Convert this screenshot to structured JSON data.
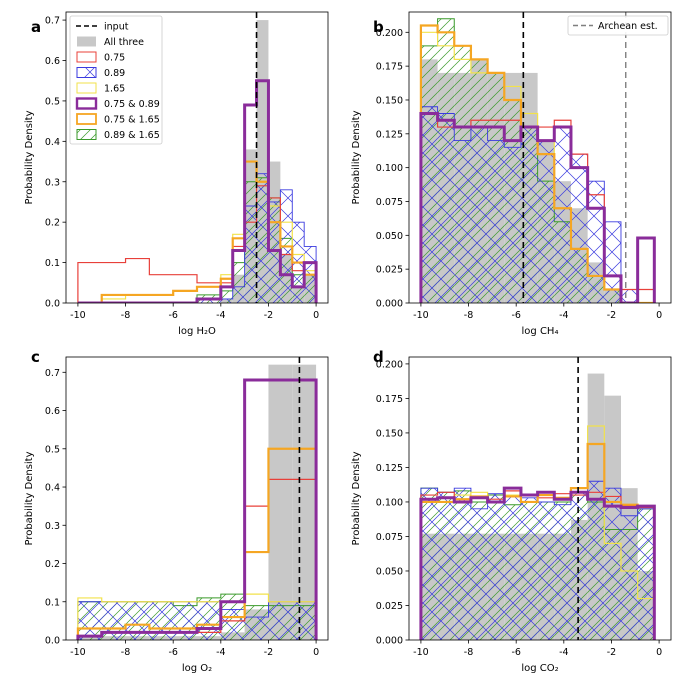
{
  "chart_data": [
    {
      "type": "histogram",
      "panel": "a",
      "xlabel": "log H₂O",
      "ylabel": "Probability Density",
      "xlim": [
        -10.5,
        0.5
      ],
      "ylim": [
        0,
        0.72
      ],
      "xticks": [
        "-10",
        "-8",
        "-6",
        "-4",
        "-2",
        "0"
      ],
      "xtick_values": [
        -10,
        -8,
        -6,
        -4,
        -2,
        0
      ],
      "yticks": [
        "0.0",
        "0.1",
        "0.2",
        "0.3",
        "0.4",
        "0.5",
        "0.6",
        "0.7"
      ],
      "ytick_values": [
        0,
        0.1,
        0.2,
        0.3,
        0.4,
        0.5,
        0.6,
        0.7
      ],
      "input": -2.5,
      "bin_edges": [
        -10,
        -9,
        -8,
        -7,
        -6,
        -5,
        -4,
        -3.5,
        -3,
        -2.5,
        -2,
        -1.5,
        -1,
        -0.5,
        0
      ],
      "series": [
        {
          "name": "All three",
          "values": [
            0,
            0,
            0,
            0,
            0,
            0,
            0.01,
            0.07,
            0.38,
            0.7,
            0.35,
            0.12,
            0.04,
            0.07
          ]
        },
        {
          "name": "0.75",
          "values": [
            0.1,
            0.1,
            0.11,
            0.07,
            0.07,
            0.05,
            0.05,
            0.14,
            0.2,
            0.29,
            0.26,
            0.12,
            0.08,
            0.1
          ]
        },
        {
          "name": "0.89",
          "values": [
            0,
            0,
            0,
            0,
            0,
            0.01,
            0.01,
            0.04,
            0.24,
            0.32,
            0.25,
            0.28,
            0.2,
            0.14
          ]
        },
        {
          "name": "1.65",
          "values": [
            0,
            0.01,
            0.02,
            0.02,
            0.03,
            0.04,
            0.07,
            0.17,
            0.35,
            0.3,
            0.24,
            0.2,
            0.12,
            0.08
          ]
        },
        {
          "name": "0.75 & 0.89",
          "values": [
            0,
            0,
            0,
            0,
            0,
            0.01,
            0.04,
            0.13,
            0.49,
            0.55,
            0.13,
            0.07,
            0.04,
            0.1
          ]
        },
        {
          "name": "0.75 & 1.65",
          "values": [
            0,
            0.02,
            0.02,
            0.02,
            0.03,
            0.04,
            0.06,
            0.16,
            0.35,
            0.3,
            0.2,
            0.14,
            0.1,
            0.07
          ]
        },
        {
          "name": "0.89 & 1.65",
          "values": [
            0,
            0,
            0,
            0,
            0,
            0.02,
            0.03,
            0.1,
            0.3,
            0.31,
            0.26,
            0.16,
            0.07,
            0.07
          ]
        }
      ]
    },
    {
      "type": "histogram",
      "panel": "b",
      "xlabel": "log CH₄",
      "ylabel": "Probability Density",
      "xlim": [
        -10.5,
        0.5
      ],
      "ylim": [
        0,
        0.215
      ],
      "xticks": [
        "-10",
        "-8",
        "-6",
        "-4",
        "-2",
        "0"
      ],
      "xtick_values": [
        -10,
        -8,
        -6,
        -4,
        -2,
        0
      ],
      "yticks": [
        "0.000",
        "0.025",
        "0.050",
        "0.075",
        "0.100",
        "0.125",
        "0.150",
        "0.175",
        "0.200"
      ],
      "ytick_values": [
        0,
        0.025,
        0.05,
        0.075,
        0.1,
        0.125,
        0.15,
        0.175,
        0.2
      ],
      "input": -5.7,
      "archean_est": -1.4,
      "bin_edges": [
        -10,
        -9.3,
        -8.6,
        -7.9,
        -7.2,
        -6.5,
        -5.8,
        -5.1,
        -4.4,
        -3.7,
        -3.0,
        -2.3,
        -1.6,
        -0.9,
        -0.2
      ],
      "series": [
        {
          "name": "All three",
          "values": [
            0.18,
            0.17,
            0.17,
            0.18,
            0.17,
            0.17,
            0.17,
            0.12,
            0.09,
            0.07,
            0.03,
            0.01,
            0,
            0
          ]
        },
        {
          "name": "0.75",
          "values": [
            0.14,
            0.13,
            0.13,
            0.135,
            0.135,
            0.135,
            0.13,
            0.13,
            0.135,
            0.11,
            0.08,
            0.02,
            0.01,
            0.01
          ]
        },
        {
          "name": "0.89",
          "values": [
            0.145,
            0.14,
            0.12,
            0.13,
            0.12,
            0.115,
            0.13,
            0.12,
            0.13,
            0.11,
            0.09,
            0.06,
            0.01,
            0
          ]
        },
        {
          "name": "1.65",
          "values": [
            0.2,
            0.19,
            0.18,
            0.17,
            0.17,
            0.16,
            0.14,
            0.12,
            0.07,
            0.04,
            0.02,
            0.01,
            0,
            0
          ]
        },
        {
          "name": "0.75 & 0.89",
          "values": [
            0.14,
            0.135,
            0.13,
            0.13,
            0.13,
            0.12,
            0.13,
            0.12,
            0.13,
            0.1,
            0.07,
            0.02,
            0,
            0.048
          ]
        },
        {
          "name": "0.75 & 1.65",
          "values": [
            0.205,
            0.2,
            0.19,
            0.18,
            0.17,
            0.15,
            0.13,
            0.11,
            0.07,
            0.04,
            0.02,
            0.01,
            0,
            0
          ]
        },
        {
          "name": "0.89 & 1.65",
          "values": [
            0.19,
            0.21,
            0.19,
            0.18,
            0.17,
            0.15,
            0.13,
            0.09,
            0.06,
            0.04,
            0.02,
            0.01,
            0,
            0
          ]
        }
      ]
    },
    {
      "type": "histogram",
      "panel": "c",
      "xlabel": "log O₂",
      "ylabel": "Probability Density",
      "xlim": [
        -10.5,
        0.5
      ],
      "ylim": [
        0,
        0.74
      ],
      "xticks": [
        "-10",
        "-8",
        "-6",
        "-4",
        "-2",
        "0"
      ],
      "xtick_values": [
        -10,
        -8,
        -6,
        -4,
        -2,
        0
      ],
      "yticks": [
        "0.0",
        "0.1",
        "0.2",
        "0.3",
        "0.4",
        "0.5",
        "0.6",
        "0.7"
      ],
      "ytick_values": [
        0,
        0.1,
        0.2,
        0.3,
        0.4,
        0.5,
        0.6,
        0.7
      ],
      "input": -0.7,
      "bin_edges": [
        -10,
        -9,
        -8,
        -7,
        -6,
        -5,
        -4,
        -3,
        -2,
        -1,
        0
      ],
      "series": [
        {
          "name": "All three",
          "values": [
            0.01,
            0.01,
            0.01,
            0.01,
            0.01,
            0.01,
            0.02,
            0.08,
            0.72,
            0.72
          ]
        },
        {
          "name": "0.75",
          "values": [
            0.01,
            0.02,
            0.02,
            0.02,
            0.02,
            0.02,
            0.05,
            0.35,
            0.42,
            0.42
          ]
        },
        {
          "name": "0.89",
          "values": [
            0.1,
            0.1,
            0.1,
            0.1,
            0.1,
            0.1,
            0.08,
            0.06,
            0.1,
            0.1
          ]
        },
        {
          "name": "1.65",
          "values": [
            0.11,
            0.1,
            0.1,
            0.1,
            0.1,
            0.1,
            0.1,
            0.12,
            0.1,
            0.1
          ]
        },
        {
          "name": "0.75 & 0.89",
          "values": [
            0.01,
            0.02,
            0.02,
            0.02,
            0.02,
            0.03,
            0.1,
            0.68,
            0.68,
            0.68
          ]
        },
        {
          "name": "0.75 & 1.65",
          "values": [
            0.03,
            0.03,
            0.04,
            0.03,
            0.03,
            0.04,
            0.06,
            0.23,
            0.5,
            0.5
          ]
        },
        {
          "name": "0.89 & 1.65",
          "values": [
            0.1,
            0.1,
            0.1,
            0.1,
            0.09,
            0.11,
            0.12,
            0.09,
            0.09,
            0.09
          ]
        }
      ]
    },
    {
      "type": "histogram",
      "panel": "d",
      "xlabel": "log CO₂",
      "ylabel": "Probability Density",
      "xlim": [
        -10.5,
        0.5
      ],
      "ylim": [
        0,
        0.205
      ],
      "xticks": [
        "-10",
        "-8",
        "-6",
        "-4",
        "-2",
        "0"
      ],
      "xtick_values": [
        -10,
        -8,
        -6,
        -4,
        -2,
        0
      ],
      "yticks": [
        "0.000",
        "0.025",
        "0.050",
        "0.075",
        "0.100",
        "0.125",
        "0.150",
        "0.175",
        "0.200"
      ],
      "ytick_values": [
        0,
        0.025,
        0.05,
        0.075,
        0.1,
        0.125,
        0.15,
        0.175,
        0.2
      ],
      "input": -3.4,
      "bin_edges": [
        -10,
        -9.3,
        -8.6,
        -7.9,
        -7.2,
        -6.5,
        -5.8,
        -5.1,
        -4.4,
        -3.7,
        -3.0,
        -2.3,
        -1.6,
        -0.9,
        -0.2
      ],
      "series": [
        {
          "name": "All three",
          "values": [
            0.077,
            0.077,
            0.077,
            0.077,
            0.077,
            0.077,
            0.077,
            0.077,
            0.077,
            0.087,
            0.193,
            0.177,
            0.11,
            0.05
          ]
        },
        {
          "name": "0.75",
          "values": [
            0.105,
            0.107,
            0.1,
            0.103,
            0.102,
            0.108,
            0.105,
            0.103,
            0.106,
            0.105,
            0.107,
            0.104,
            0.097,
            0.096
          ]
        },
        {
          "name": "0.89",
          "values": [
            0.11,
            0.107,
            0.11,
            0.095,
            0.106,
            0.105,
            0.103,
            0.1,
            0.098,
            0.107,
            0.115,
            0.11,
            0.09,
            0.095
          ]
        },
        {
          "name": "1.65",
          "values": [
            0.1,
            0.1,
            0.105,
            0.107,
            0.1,
            0.105,
            0.1,
            0.105,
            0.102,
            0.11,
            0.155,
            0.07,
            0.05,
            0.03
          ]
        },
        {
          "name": "0.75 & 0.89",
          "values": [
            0.102,
            0.103,
            0.1,
            0.103,
            0.1,
            0.11,
            0.105,
            0.107,
            0.102,
            0.107,
            0.102,
            0.097,
            0.096,
            0.097
          ]
        },
        {
          "name": "0.75 & 1.65",
          "values": [
            0.1,
            0.1,
            0.102,
            0.104,
            0.1,
            0.104,
            0.1,
            0.105,
            0.103,
            0.11,
            0.142,
            0.1,
            0.098,
            0.097
          ]
        },
        {
          "name": "0.89 & 1.65",
          "values": [
            0.11,
            0.107,
            0.108,
            0.1,
            0.105,
            0.098,
            0.1,
            0.1,
            0.1,
            0.107,
            0.1,
            0.08,
            0.08,
            0.095
          ]
        }
      ]
    }
  ],
  "legend_a": {
    "entries": [
      "input",
      "All three",
      "0.75",
      "0.89",
      "1.65",
      "0.75 & 0.89",
      "0.75 & 1.65",
      "0.89 & 1.65"
    ]
  },
  "legend_b": {
    "entries": [
      "Archean est."
    ]
  },
  "colors": {
    "all_three": "#c8c8c8",
    "s075": "#e8403a",
    "s089": "#3a3adf",
    "s165": "#f2e24a",
    "s075_089": "#8a2c9a",
    "s075_165": "#f5a623",
    "s089_165": "#3a9a2a",
    "input_line": "#000000",
    "archean_line": "#7f7f7f"
  }
}
